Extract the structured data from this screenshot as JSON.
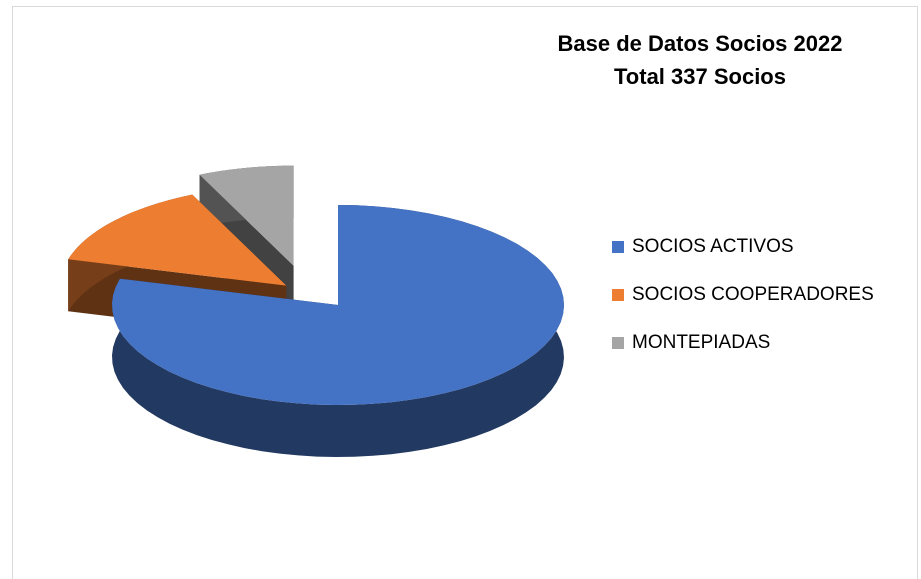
{
  "chart_data": {
    "type": "pie3d",
    "title": [
      "Base de Datos Socios 2022",
      "Total 337 Socios"
    ],
    "categories": [
      "SOCIOS ACTIVOS",
      "SOCIOS COOPERADORES",
      "MONTEPIADAS"
    ],
    "values": [
      267,
      47,
      23
    ],
    "colors": [
      "#4472c4",
      "#ed7d31",
      "#a5a5a5"
    ],
    "legend": "right"
  }
}
